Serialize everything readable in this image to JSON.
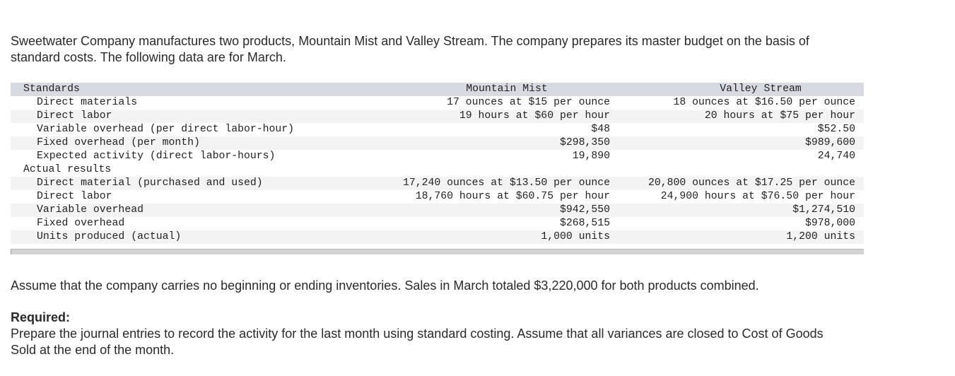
{
  "intro": "Sweetwater Company manufactures two products, Mountain Mist and Valley Stream. The company prepares its master budget on the basis of standard costs. The following data are for March.",
  "table": {
    "columns": [
      "Mountain Mist",
      "Valley Stream"
    ],
    "sections": [
      {
        "title": "Standards",
        "rows": [
          [
            "Direct materials",
            "17 ounces at $15 per ounce",
            "18 ounces at $16.50 per ounce"
          ],
          [
            "Direct labor",
            "19 hours at $60 per hour",
            "20 hours at $75 per hour"
          ],
          [
            "Variable overhead (per direct labor-hour)",
            "$48",
            "$52.50"
          ],
          [
            "Fixed overhead (per month)",
            "$298,350",
            "$989,600"
          ],
          [
            "Expected activity (direct labor-hours)",
            "19,890",
            "24,740"
          ]
        ]
      },
      {
        "title": "Actual results",
        "rows": [
          [
            "Direct material (purchased and used)",
            "17,240 ounces at $13.50 per ounce",
            "20,800 ounces at $17.25 per ounce"
          ],
          [
            "Direct labor",
            "18,760 hours at $60.75 per hour",
            "24,900 hours at $76.50 per hour"
          ],
          [
            "Variable overhead",
            "$942,550",
            "$1,274,510"
          ],
          [
            "Fixed overhead",
            "$268,515",
            "$978,000"
          ],
          [
            "Units produced (actual)",
            "1,000 units",
            "1,200 units"
          ]
        ]
      }
    ]
  },
  "assumption": "Assume that the company carries no beginning or ending inventories. Sales in March totaled $3,220,000 for both products combined.",
  "required": {
    "heading": "Required:",
    "text": "Prepare the journal entries to record the activity for the last month using standard costing. Assume that all variances are closed to Cost of Goods Sold at the end of the month."
  }
}
